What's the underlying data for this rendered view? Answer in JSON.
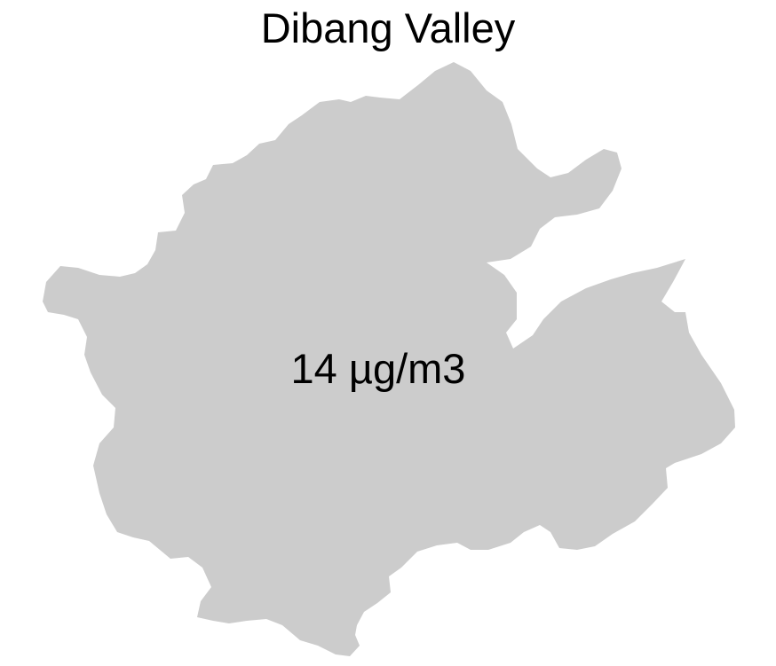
{
  "map": {
    "title": "Dibang Valley",
    "region": {
      "name": "Dibang Valley",
      "value_label": "14 µg/m3",
      "value": 14,
      "unit": "µg/m3",
      "fill_color": "#cccccc"
    }
  }
}
